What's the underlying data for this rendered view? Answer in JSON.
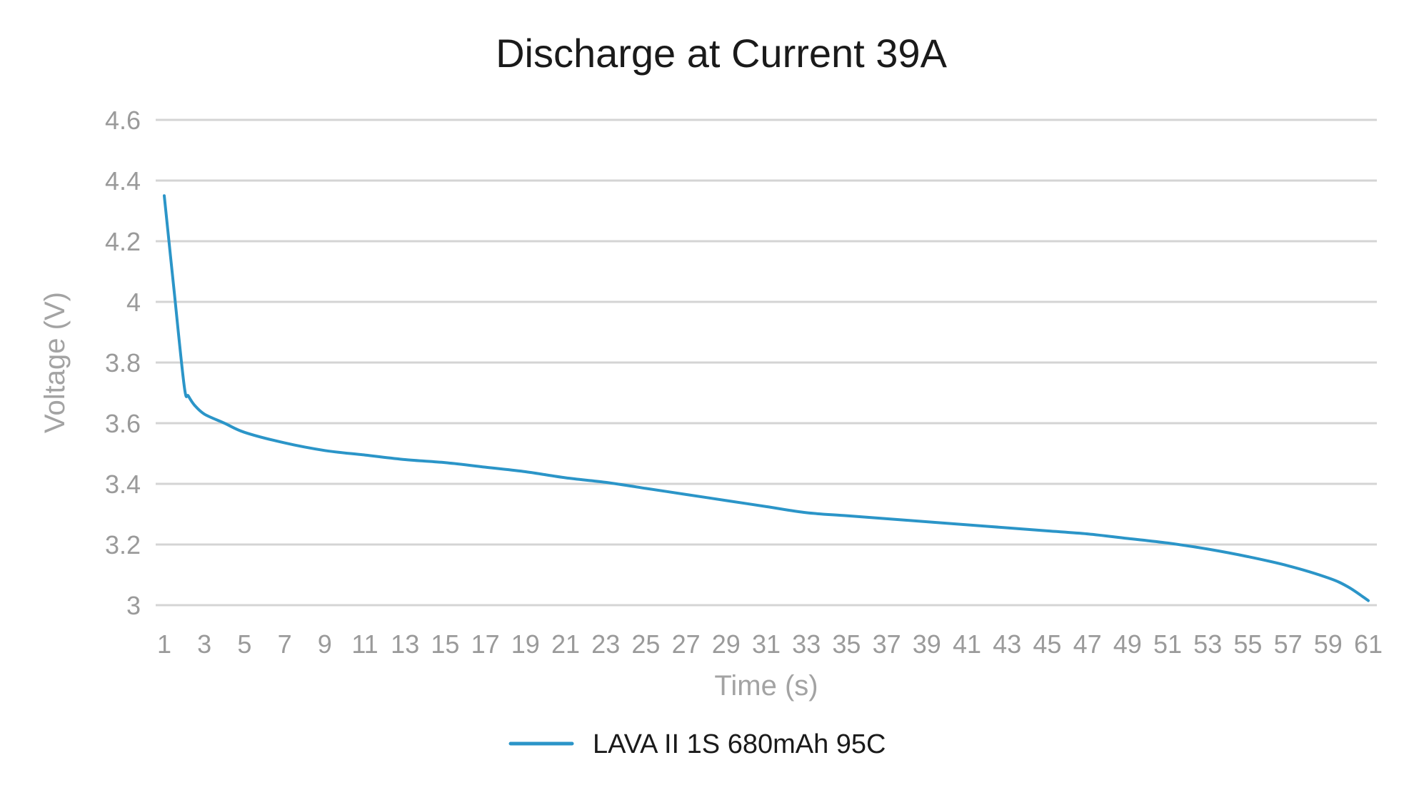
{
  "chart_data": {
    "type": "line",
    "title": "Discharge at Current 39A",
    "xlabel": "Time (s)",
    "ylabel": "Voltage (V)",
    "x_tick_labels": [
      "1",
      "3",
      "5",
      "7",
      "9",
      "11",
      "13",
      "15",
      "17",
      "19",
      "21",
      "23",
      "25",
      "27",
      "29",
      "31",
      "33",
      "35",
      "37",
      "39",
      "41",
      "43",
      "45",
      "47",
      "49",
      "51",
      "53",
      "55",
      "57",
      "59",
      "61"
    ],
    "y_ticks": [
      3,
      3.2,
      3.4,
      3.6,
      3.8,
      4,
      4.2,
      4.4,
      4.6
    ],
    "y_tick_labels": [
      "3",
      "3.2",
      "3.4",
      "3.6",
      "3.8",
      "4",
      "4.2",
      "4.4",
      "4.6"
    ],
    "ylim": [
      3,
      4.6
    ],
    "xlim": [
      1,
      61
    ],
    "grid": true,
    "legend_position": "bottom",
    "series": [
      {
        "name": "LAVA II 1S 680mAh 95C",
        "color": "#2b95c8",
        "x": [
          1,
          1.5,
          2,
          2.2,
          2.5,
          3,
          4,
          5,
          7,
          9,
          11,
          13,
          15,
          17,
          19,
          21,
          23,
          25,
          27,
          29,
          31,
          33,
          35,
          37,
          39,
          41,
          43,
          45,
          47,
          49,
          51,
          53,
          55,
          57,
          59,
          60,
          61
        ],
        "y": [
          4.35,
          4.03,
          3.72,
          3.69,
          3.66,
          3.63,
          3.6,
          3.57,
          3.535,
          3.51,
          3.495,
          3.48,
          3.47,
          3.455,
          3.44,
          3.42,
          3.405,
          3.385,
          3.365,
          3.345,
          3.325,
          3.305,
          3.295,
          3.285,
          3.275,
          3.265,
          3.255,
          3.245,
          3.235,
          3.22,
          3.205,
          3.185,
          3.16,
          3.13,
          3.09,
          3.06,
          3.015
        ]
      }
    ]
  }
}
